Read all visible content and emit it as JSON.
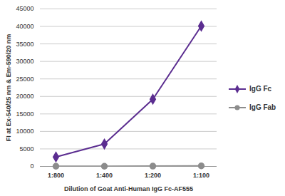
{
  "chart_data": {
    "type": "line",
    "x_label": "Dilution of Goat Anti-Human IgG Fc-AF555",
    "y_label": "FI at Ex-540/25 nm & Em-590/20 nm",
    "categories": [
      "1:800",
      "1:400",
      "1:200",
      "1:100"
    ],
    "series": [
      {
        "name": "IgG Fc",
        "color": "#5b2d90",
        "marker": "diamond",
        "values": [
          2700,
          6400,
          19200,
          40100
        ]
      },
      {
        "name": "IgG Fab",
        "color": "#8c8c8c",
        "marker": "circle",
        "values": [
          50,
          50,
          80,
          150
        ]
      }
    ],
    "ylim": [
      0,
      45000
    ],
    "yticks": [
      0,
      5000,
      10000,
      15000,
      20000,
      25000,
      30000,
      35000,
      40000,
      45000
    ],
    "grid": true,
    "legend": "right"
  }
}
